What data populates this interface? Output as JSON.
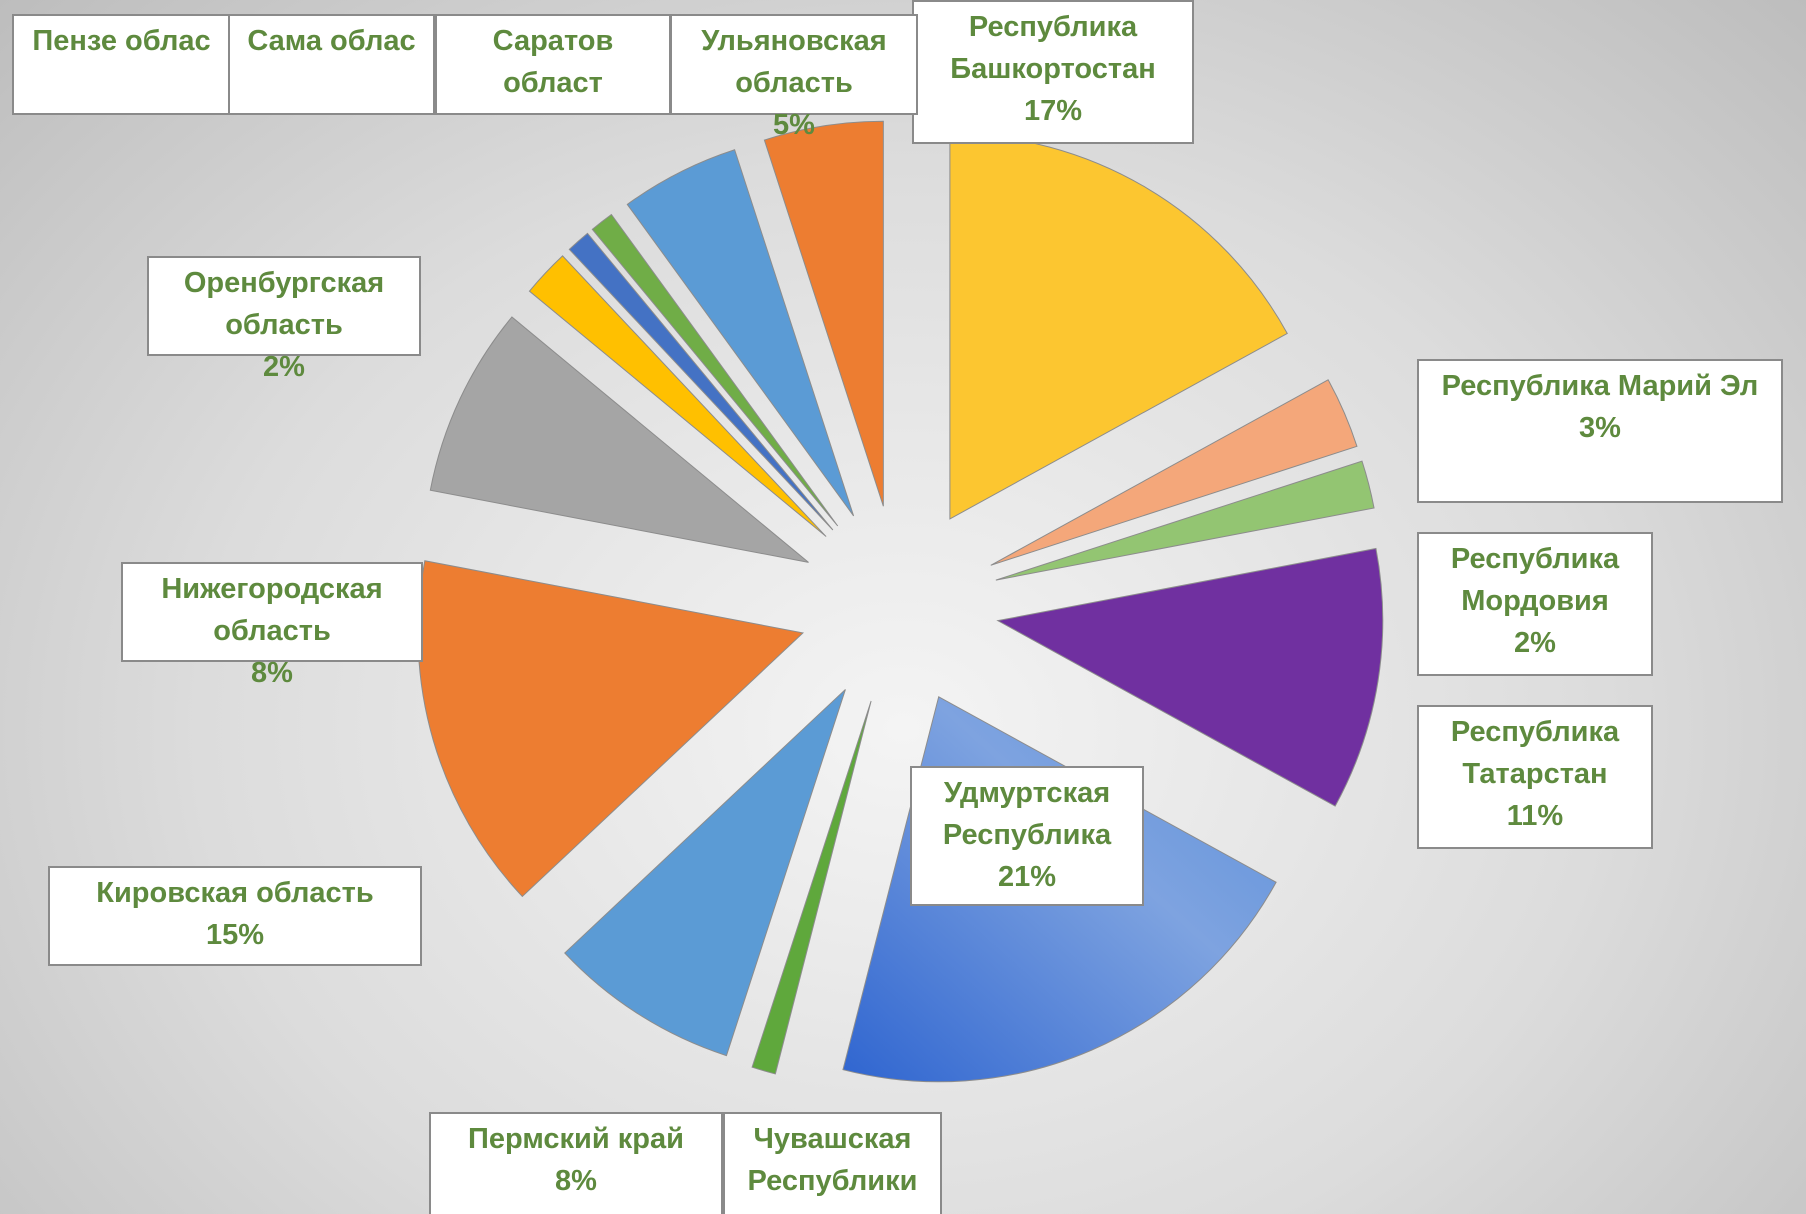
{
  "chart_data": {
    "type": "pie",
    "categories": [
      "Республика Башкортостан",
      "Республика Марий Эл",
      "Республика Мордовия",
      "Республика Татарстан",
      "Удмуртская Республика",
      "Чувашская Республики",
      "Пермский край",
      "Кировская область",
      "Нижегородская область",
      "Оренбургская область",
      "Пензе облас",
      "Сама облас",
      "Саратов област",
      "Ульяновская область"
    ],
    "values": [
      17,
      3,
      2,
      11,
      21,
      1,
      8,
      15,
      8,
      2,
      1,
      1,
      5,
      5
    ],
    "value_labels": [
      "17%",
      "3%",
      "2%",
      "11%",
      "21%",
      null,
      "8%",
      "15%",
      "8%",
      "2%",
      null,
      null,
      null,
      "5%"
    ],
    "colors": [
      "#fcc630",
      "#f4a77a",
      "#93c572",
      "#7030a0",
      "#5b8fd9",
      "#5fa83c",
      "#5b9bd5",
      "#ed7d31",
      "#a5a5a5",
      "#ffc000",
      "#4472c4",
      "#70ad47",
      "#5b9bd5",
      "#ed7d31"
    ]
  }
}
